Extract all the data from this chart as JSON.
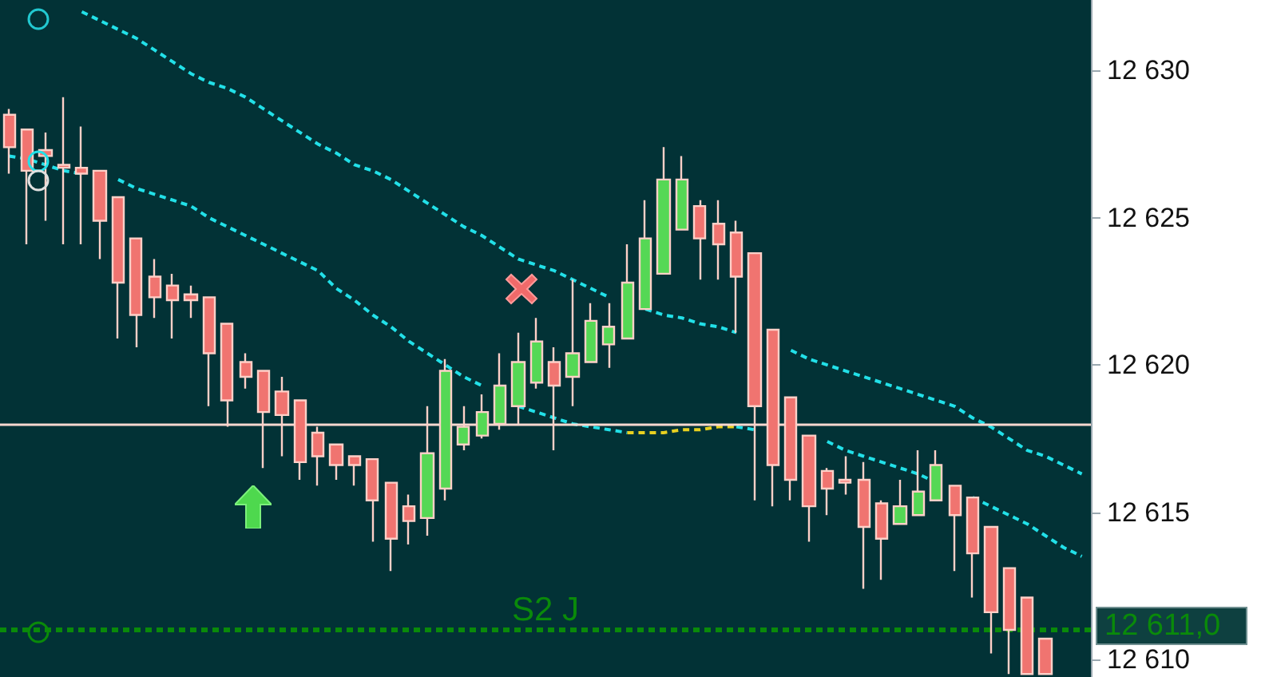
{
  "chart_data": {
    "type": "candlestick",
    "categories": [
      null,
      null,
      null,
      null,
      null,
      null,
      null,
      null,
      null,
      null,
      null,
      null,
      null,
      null,
      null,
      null,
      null,
      null,
      null,
      null,
      null,
      null,
      null,
      null,
      null,
      null,
      null,
      null,
      null,
      null,
      null,
      null,
      null,
      null,
      null,
      null,
      null,
      null,
      null,
      null,
      null,
      null,
      null,
      null,
      null,
      null,
      null,
      null,
      null,
      null,
      null,
      null,
      null,
      null,
      null,
      null,
      null,
      null,
      null,
      null
    ],
    "series": [
      {
        "ohlc": [
          [
            12628.5,
            12628.7,
            12626.5,
            12627.4
          ],
          [
            12628.0,
            12628.0,
            12624.1,
            12626.6
          ],
          [
            12627.3,
            12627.9,
            12624.9,
            12627.1
          ],
          [
            12626.8,
            12629.1,
            12624.1,
            12626.7
          ],
          [
            12626.7,
            12628.1,
            12624.1,
            12626.5
          ],
          [
            12626.6,
            12626.6,
            12623.6,
            12624.9
          ],
          [
            12625.7,
            12625.7,
            12620.9,
            12622.8
          ],
          [
            12624.3,
            12624.3,
            12620.6,
            12621.7
          ],
          [
            12623.0,
            12623.6,
            12621.6,
            12622.3
          ],
          [
            12622.7,
            12623.1,
            12620.9,
            12622.2
          ],
          [
            12622.4,
            12622.7,
            12621.6,
            12622.2
          ],
          [
            12622.3,
            12622.3,
            12618.6,
            12620.4
          ],
          [
            12621.4,
            12621.4,
            12617.9,
            12618.8
          ],
          [
            12620.1,
            12620.4,
            12619.2,
            12619.6
          ],
          [
            12619.8,
            12619.8,
            12616.5,
            12618.4
          ],
          [
            12619.1,
            12619.6,
            12616.9,
            12618.3
          ],
          [
            12618.8,
            12618.8,
            12616.1,
            12616.7
          ],
          [
            12617.7,
            12617.9,
            12615.9,
            12616.9
          ],
          [
            12617.3,
            12617.3,
            12616.1,
            12616.6
          ],
          [
            12616.9,
            12616.9,
            12615.9,
            12616.6
          ],
          [
            12616.8,
            12616.8,
            12614.0,
            12615.4
          ],
          [
            12616.0,
            12616.0,
            12613.0,
            12614.1
          ],
          [
            12615.2,
            12615.6,
            12613.9,
            12614.7
          ],
          [
            12614.8,
            12618.6,
            12614.2,
            12617.0
          ],
          [
            12615.8,
            12620.2,
            12615.4,
            12619.8
          ],
          [
            12617.3,
            12618.6,
            12617.1,
            12617.9
          ],
          [
            12617.6,
            12619.0,
            12617.5,
            12618.4
          ],
          [
            12618.0,
            12620.4,
            12617.8,
            12619.3
          ],
          [
            12618.6,
            12621.1,
            12618.0,
            12620.1
          ],
          [
            12619.4,
            12621.6,
            12619.2,
            12620.8
          ],
          [
            12620.1,
            12620.6,
            12617.1,
            12619.3
          ],
          [
            12619.6,
            12622.9,
            12618.6,
            12620.4
          ],
          [
            12620.1,
            12622.1,
            12620.1,
            12621.5
          ],
          [
            12620.7,
            12622.1,
            12619.9,
            12621.3
          ],
          [
            12620.9,
            12624.1,
            12620.9,
            12622.8
          ],
          [
            12621.9,
            12625.6,
            12621.9,
            12624.3
          ],
          [
            12623.1,
            12627.4,
            12623.1,
            12626.3
          ],
          [
            12624.6,
            12627.1,
            12624.6,
            12626.3
          ],
          [
            12625.4,
            12625.6,
            12622.9,
            12624.3
          ],
          [
            12624.8,
            12625.6,
            12622.9,
            12624.1
          ],
          [
            12624.5,
            12624.9,
            12621.1,
            12623.0
          ],
          [
            12623.8,
            12623.8,
            12615.4,
            12618.6
          ],
          [
            12621.2,
            12621.2,
            12615.2,
            12616.6
          ],
          [
            12618.9,
            12618.9,
            12615.4,
            12616.1
          ],
          [
            12617.6,
            12617.6,
            12614.0,
            12615.2
          ],
          [
            12616.4,
            12616.5,
            12614.9,
            12615.8
          ],
          [
            12616.1,
            12616.9,
            12615.6,
            12616.0
          ],
          [
            12616.1,
            12616.7,
            12612.4,
            12614.5
          ],
          [
            12615.3,
            12615.4,
            12612.7,
            12614.1
          ],
          [
            12614.6,
            12616.1,
            12614.6,
            12615.2
          ],
          [
            12614.9,
            12617.1,
            12614.9,
            12615.7
          ],
          [
            12615.4,
            12617.1,
            12615.4,
            12616.6
          ],
          [
            12615.9,
            12615.9,
            12613.0,
            12614.9
          ],
          [
            12615.5,
            12615.5,
            12612.1,
            12613.6
          ],
          [
            12614.5,
            12614.5,
            12610.2,
            12611.6
          ],
          [
            12613.1,
            12613.1,
            12609.5,
            12611.0
          ],
          [
            12612.1,
            12612.1,
            12609.5,
            12609.5
          ],
          [
            12610.7,
            12610.7,
            12609.5,
            12609.5
          ],
          null,
          null
        ],
        "colors": [
          "#f07470",
          "#f07470",
          "#f07470",
          "#f07470",
          "#f07470",
          "#f07470",
          "#f07470",
          "#f07470",
          "#f07470",
          "#f07470",
          "#f07470",
          "#f07470",
          "#f07470",
          "#f07470",
          "#f07470",
          "#f07470",
          "#f07470",
          "#f07470",
          "#f07470",
          "#f07470",
          "#f07470",
          "#f07470",
          "#f07470",
          "#55d855",
          "#55d855",
          "#55d855",
          "#55d855",
          "#55d855",
          "#55d855",
          "#55d855",
          "#f07470",
          "#55d855",
          "#55d855",
          "#55d855",
          "#55d855",
          "#55d855",
          "#55d855",
          "#55d855",
          "#f07470",
          "#f07470",
          "#f07470",
          "#f07470",
          "#f07470",
          "#f07470",
          "#f07470",
          "#f07470",
          "#f07470",
          "#f07470",
          "#f07470",
          "#55d855",
          "#55d855",
          "#55d855",
          "#f07470",
          "#f07470",
          "#f07470",
          "#f07470",
          "#f07470",
          "#f07470",
          null,
          null
        ]
      },
      {
        "type": "line",
        "color": "#22e0e8",
        "line_style": "dashed",
        "values": [
          null,
          null,
          null,
          null,
          12632.0,
          12631.7,
          12631.4,
          12631.1,
          12630.7,
          12630.3,
          12629.9,
          12629.6,
          12629.4,
          12629.1,
          12628.7,
          12628.3,
          12627.9,
          12627.5,
          12627.2,
          12626.8,
          12626.6,
          12626.3,
          12625.9,
          12625.5,
          12625.1,
          12624.7,
          12624.4,
          12624.0,
          12623.6,
          12623.4,
          12623.2,
          12622.9,
          12622.6,
          12622.3,
          null,
          12621.9,
          12621.7,
          12621.6,
          12621.4,
          12621.3,
          12621.1,
          null,
          null,
          12620.5,
          12620.2,
          12620.0,
          12619.8,
          12619.6,
          12619.4,
          12619.2,
          12619.0,
          12618.8,
          12618.6,
          12618.2,
          12617.9,
          12617.5,
          12617.1,
          12616.9,
          12616.6,
          12616.3
        ]
      },
      {
        "type": "line",
        "color": "#22e0e8",
        "line_style": "dashed",
        "values": [
          12627.1,
          12627.0,
          12626.8,
          12626.6,
          12626.5,
          null,
          12626.3,
          12626.0,
          12625.8,
          12625.6,
          12625.4,
          12625.0,
          12624.7,
          12624.4,
          12624.1,
          12623.8,
          12623.5,
          12623.2,
          12622.6,
          12622.2,
          12621.7,
          12621.3,
          12620.8,
          12620.4,
          12620.0,
          12619.6,
          12619.3,
          null,
          12618.6,
          12618.4,
          12618.2,
          12618.0,
          12617.9,
          12617.8,
          12617.7,
          null,
          null,
          null,
          null,
          null,
          null,
          null,
          null,
          null,
          null,
          null,
          null,
          null,
          null,
          null,
          null,
          null,
          null,
          null,
          null,
          null,
          null,
          null,
          null,
          null
        ]
      },
      {
        "type": "line",
        "color": "#e8d020",
        "line_style": "dashed",
        "values": [
          null,
          null,
          null,
          null,
          null,
          null,
          null,
          null,
          null,
          null,
          null,
          null,
          null,
          null,
          null,
          null,
          null,
          null,
          null,
          null,
          null,
          null,
          null,
          null,
          null,
          null,
          null,
          null,
          null,
          null,
          null,
          null,
          null,
          null,
          12617.7,
          12617.7,
          12617.7,
          12617.8,
          12617.8,
          12617.9,
          12617.9,
          null,
          null,
          null,
          null,
          null,
          null,
          null,
          null,
          null,
          null,
          null,
          null,
          null,
          null,
          null,
          null,
          null,
          null,
          null
        ]
      },
      {
        "type": "line",
        "color": "#22e0e8",
        "line_style": "dashed",
        "values": [
          null,
          null,
          null,
          null,
          null,
          null,
          null,
          null,
          null,
          null,
          null,
          null,
          null,
          null,
          null,
          null,
          null,
          null,
          null,
          null,
          null,
          null,
          null,
          null,
          null,
          null,
          null,
          null,
          null,
          null,
          null,
          null,
          null,
          null,
          null,
          null,
          null,
          null,
          null,
          null,
          12617.9,
          12617.8,
          null,
          null,
          null,
          12617.4,
          12617.1,
          12616.9,
          12616.7,
          12616.5,
          12616.3,
          12616.0,
          null,
          12615.5,
          12615.2,
          12614.9,
          12614.6,
          12614.2,
          12613.8,
          12613.5
        ]
      }
    ],
    "ylim": [
      12609.4,
      12632.4
    ],
    "yticks": [
      {
        "value": 12610,
        "label": "12 610"
      },
      {
        "value": 12615,
        "label": "12 615"
      },
      {
        "value": 12620,
        "label": "12 620"
      },
      {
        "value": 12625,
        "label": "12 625"
      },
      {
        "value": 12630,
        "label": "12 630"
      }
    ],
    "ref_lines": [
      {
        "axis": "y",
        "value": 12618.0,
        "color": "#f8d8d0",
        "line_style": "solid"
      },
      {
        "axis": "y",
        "value": 12611.0,
        "label": "S2 J",
        "color": "#0a8a0a",
        "line_style": "dashed"
      }
    ],
    "annotations": [
      "12 611,0"
    ],
    "marker": "none",
    "tick_labels": "y"
  }
}
